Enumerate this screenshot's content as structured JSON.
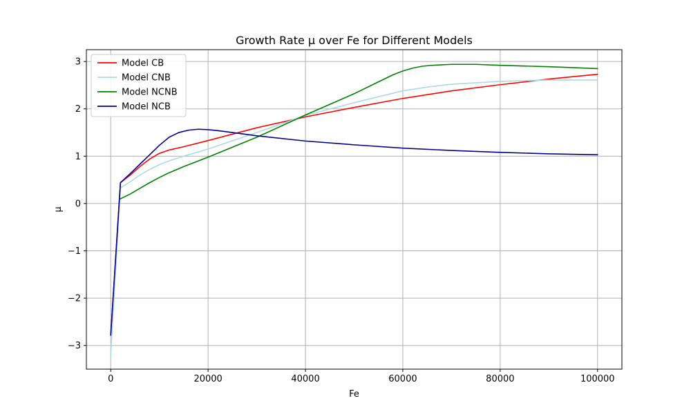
{
  "chart_data": {
    "type": "line",
    "title": "Growth Rate μ over Fe for Different Models",
    "xlabel": "Fe",
    "ylabel": "μ",
    "xlim": [
      -5000,
      105000
    ],
    "ylim": [
      -3.5,
      3.25
    ],
    "xticks": [
      0,
      20000,
      40000,
      60000,
      80000,
      100000
    ],
    "xtick_labels": [
      "0",
      "20000",
      "40000",
      "60000",
      "80000",
      "100000"
    ],
    "yticks": [
      -3,
      -2,
      -1,
      0,
      1,
      2,
      3
    ],
    "ytick_labels": [
      "−3",
      "−2",
      "−1",
      "0",
      "1",
      "2",
      "3"
    ],
    "grid": true,
    "legend_position": "top-left",
    "series": [
      {
        "name": "Model CB",
        "color": "#ff0000",
        "x": [
          0,
          2000,
          4000,
          6000,
          8000,
          10000,
          12000,
          15000,
          20000,
          30000,
          40000,
          50000,
          60000,
          70000,
          80000,
          90000,
          100000
        ],
        "y": [
          -2.78,
          0.44,
          0.6,
          0.78,
          0.94,
          1.06,
          1.13,
          1.2,
          1.33,
          1.6,
          1.83,
          2.03,
          2.22,
          2.38,
          2.51,
          2.63,
          2.73
        ]
      },
      {
        "name": "Model CNB",
        "color": "#add8e6",
        "x": [
          0,
          2000,
          4000,
          6000,
          8000,
          10000,
          12000,
          15000,
          20000,
          30000,
          40000,
          50000,
          60000,
          65000,
          70000,
          80000,
          90000,
          100000
        ],
        "y": [
          -3.2,
          0.33,
          0.46,
          0.6,
          0.72,
          0.82,
          0.9,
          1.0,
          1.15,
          1.5,
          1.86,
          2.13,
          2.38,
          2.46,
          2.52,
          2.58,
          2.61,
          2.61
        ]
      },
      {
        "name": "Model NCNB",
        "color": "#008000",
        "x": [
          2000,
          4000,
          6000,
          8000,
          10000,
          12000,
          15000,
          20000,
          30000,
          40000,
          50000,
          55000,
          58000,
          60000,
          62000,
          64000,
          66000,
          70000,
          75000,
          80000,
          90000,
          100000
        ],
        "y": [
          0.1,
          0.2,
          0.32,
          0.44,
          0.55,
          0.65,
          0.78,
          0.98,
          1.4,
          1.87,
          2.32,
          2.57,
          2.72,
          2.8,
          2.86,
          2.9,
          2.92,
          2.94,
          2.94,
          2.92,
          2.89,
          2.85
        ]
      },
      {
        "name": "Model NCB",
        "color": "#00008b",
        "x": [
          0,
          2000,
          4000,
          6000,
          8000,
          10000,
          12000,
          14000,
          16000,
          18000,
          20000,
          22000,
          25000,
          30000,
          40000,
          50000,
          60000,
          70000,
          80000,
          90000,
          100000
        ],
        "y": [
          -2.78,
          0.44,
          0.63,
          0.83,
          1.03,
          1.23,
          1.4,
          1.5,
          1.55,
          1.57,
          1.56,
          1.54,
          1.5,
          1.43,
          1.32,
          1.24,
          1.17,
          1.12,
          1.08,
          1.05,
          1.03
        ]
      }
    ]
  }
}
